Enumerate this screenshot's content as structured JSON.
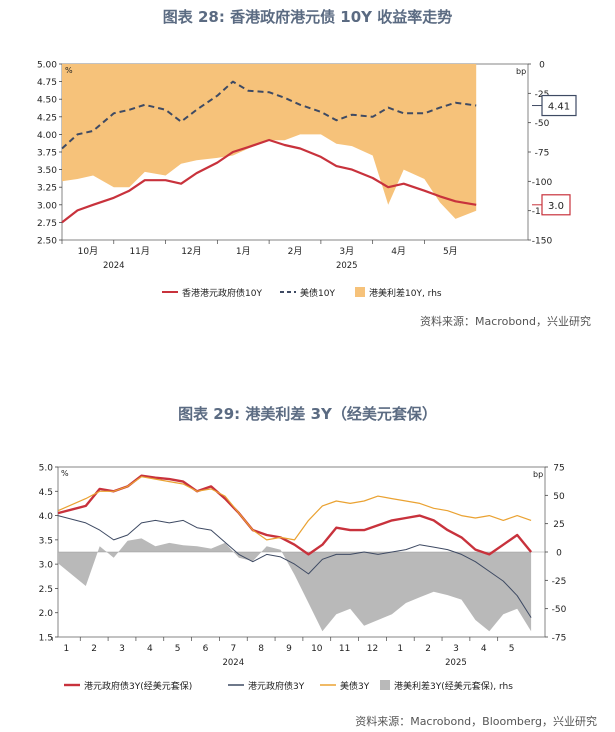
{
  "chart_data": [
    {
      "type": "line",
      "title": "图表 28: 香港政府港元债 10Y 收益率走势",
      "source": "资料来源：Macrobond，兴业研究",
      "left_unit": "%",
      "right_unit": "bp",
      "ylim": [
        2.5,
        5.0
      ],
      "yticks": [
        "5.00",
        "4.75",
        "4.50",
        "4.25",
        "4.00",
        "3.75",
        "3.50",
        "3.25",
        "3.00",
        "2.75",
        "2.50"
      ],
      "y2lim": [
        -150,
        0
      ],
      "y2ticks": [
        "0",
        "-25",
        "-50",
        "-75",
        "-100",
        "-125",
        "-150"
      ],
      "xlim": [
        0,
        9
      ],
      "month_labels": [
        "10月",
        "11月",
        "12月",
        "1月",
        "2月",
        "3月",
        "4月",
        "5月"
      ],
      "month_positions": [
        0.5,
        1.5,
        2.5,
        3.5,
        4.5,
        5.5,
        6.5,
        7.5
      ],
      "year_labels": [
        {
          "text": "2024",
          "pos": 1.0
        },
        {
          "text": "2025",
          "pos": 5.5
        }
      ],
      "legend": [
        "香港港元政府债10Y",
        "美债10Y",
        "港美利差10Y, rhs"
      ],
      "end_labels": {
        "us": "4.41",
        "hk": "3.0"
      },
      "series": [
        {
          "name": "香港港元政府债10Y",
          "axis": "left",
          "role": "hk",
          "x": [
            0,
            0.3,
            0.6,
            1.0,
            1.3,
            1.6,
            2.0,
            2.3,
            2.6,
            3.0,
            3.3,
            3.6,
            4.0,
            4.3,
            4.6,
            5.0,
            5.3,
            5.6,
            6.0,
            6.3,
            6.6,
            7.0,
            7.3,
            7.6,
            8.0
          ],
          "values": [
            2.75,
            2.92,
            3.0,
            3.1,
            3.2,
            3.35,
            3.35,
            3.3,
            3.45,
            3.6,
            3.75,
            3.82,
            3.92,
            3.85,
            3.8,
            3.68,
            3.55,
            3.5,
            3.38,
            3.25,
            3.3,
            3.2,
            3.12,
            3.05,
            3.0
          ]
        },
        {
          "name": "美债10Y",
          "axis": "left",
          "role": "us",
          "x": [
            0,
            0.3,
            0.6,
            1.0,
            1.3,
            1.6,
            2.0,
            2.3,
            2.6,
            3.0,
            3.3,
            3.6,
            4.0,
            4.3,
            4.6,
            5.0,
            5.3,
            5.6,
            6.0,
            6.3,
            6.6,
            7.0,
            7.3,
            7.6,
            8.0
          ],
          "values": [
            3.8,
            4.0,
            4.05,
            4.3,
            4.35,
            4.42,
            4.35,
            4.18,
            4.35,
            4.55,
            4.75,
            4.62,
            4.6,
            4.52,
            4.42,
            4.32,
            4.2,
            4.28,
            4.25,
            4.38,
            4.3,
            4.3,
            4.38,
            4.45,
            4.41
          ]
        },
        {
          "name": "港美利差10Y, rhs",
          "axis": "right",
          "role": "spread",
          "x": [
            0,
            0.3,
            0.6,
            1.0,
            1.3,
            1.6,
            2.0,
            2.3,
            2.6,
            3.0,
            3.3,
            3.6,
            4.0,
            4.3,
            4.6,
            5.0,
            5.3,
            5.6,
            6.0,
            6.3,
            6.6,
            7.0,
            7.3,
            7.6,
            8.0
          ],
          "values": [
            -100,
            -98,
            -95,
            -105,
            -105,
            -92,
            -95,
            -85,
            -82,
            -80,
            -78,
            -72,
            -65,
            -65,
            -60,
            -60,
            -68,
            -70,
            -78,
            -120,
            -90,
            -98,
            -118,
            -132,
            -125
          ]
        }
      ]
    },
    {
      "type": "line",
      "title": "图表 29: 港美利差 3Y（经美元套保）",
      "source": "资料来源：Macrobond，Bloomberg，兴业研究",
      "left_unit": "%",
      "right_unit": "bp",
      "ylim": [
        1.5,
        5.0
      ],
      "yticks": [
        "5.0",
        "4.5",
        "4.0",
        "3.5",
        "3.0",
        "2.5",
        "2.0",
        "1.5"
      ],
      "y2lim": [
        -75,
        75
      ],
      "y2ticks": [
        "75",
        "50",
        "25",
        "0",
        "-25",
        "-50",
        "-75"
      ],
      "xlim": [
        0,
        17.5
      ],
      "month_labels": [
        "1",
        "2",
        "3",
        "4",
        "5",
        "6",
        "7",
        "8",
        "9",
        "10",
        "11",
        "12",
        "1",
        "2",
        "3",
        "4",
        "5"
      ],
      "month_positions": [
        0.3,
        1.3,
        2.3,
        3.3,
        4.3,
        5.3,
        6.3,
        7.3,
        8.3,
        9.3,
        10.3,
        11.3,
        12.3,
        13.3,
        14.3,
        15.3,
        16.3
      ],
      "year_labels": [
        {
          "text": "2024",
          "pos": 6.3
        },
        {
          "text": "2025",
          "pos": 14.3
        }
      ],
      "legend": [
        "港元政府债3Y(经美元套保)",
        "港元政府债3Y",
        "美债3Y",
        "港美利差3Y(经美元套保), rhs"
      ],
      "series": [
        {
          "name": "港元政府债3Y(经美元套保)",
          "axis": "left",
          "role": "hk3y_hedged",
          "x": [
            0,
            1,
            1.5,
            2,
            2.5,
            3,
            3.5,
            4,
            4.5,
            5,
            5.5,
            6,
            6.5,
            7,
            7.5,
            8,
            8.5,
            9,
            9.5,
            10,
            10.5,
            11,
            11.5,
            12,
            12.5,
            13,
            13.5,
            14,
            14.5,
            15,
            15.5,
            16,
            16.5,
            17
          ],
          "values": [
            4.05,
            4.2,
            4.55,
            4.5,
            4.6,
            4.82,
            4.78,
            4.75,
            4.7,
            4.5,
            4.6,
            4.35,
            4.05,
            3.7,
            3.6,
            3.55,
            3.4,
            3.2,
            3.4,
            3.75,
            3.7,
            3.7,
            3.8,
            3.9,
            3.95,
            4.0,
            3.9,
            3.7,
            3.55,
            3.3,
            3.2,
            3.4,
            3.6,
            3.25
          ]
        },
        {
          "name": "港元政府债3Y",
          "axis": "left",
          "role": "hk3y",
          "x": [
            0,
            1,
            1.5,
            2,
            2.5,
            3,
            3.5,
            4,
            4.5,
            5,
            5.5,
            6,
            6.5,
            7,
            7.5,
            8,
            8.5,
            9,
            9.5,
            10,
            10.5,
            11,
            11.5,
            12,
            12.5,
            13,
            13.5,
            14,
            14.5,
            15,
            15.5,
            16,
            16.5,
            17
          ],
          "values": [
            4.0,
            3.85,
            3.7,
            3.5,
            3.6,
            3.85,
            3.9,
            3.85,
            3.9,
            3.75,
            3.7,
            3.45,
            3.2,
            3.05,
            3.2,
            3.15,
            3.0,
            2.8,
            3.1,
            3.2,
            3.2,
            3.25,
            3.2,
            3.25,
            3.3,
            3.4,
            3.35,
            3.3,
            3.2,
            3.05,
            2.85,
            2.65,
            2.35,
            1.9
          ]
        },
        {
          "name": "美债3Y",
          "axis": "left",
          "role": "us3y",
          "x": [
            0,
            1,
            1.5,
            2,
            2.5,
            3,
            3.5,
            4,
            4.5,
            5,
            5.5,
            6,
            6.5,
            7,
            7.5,
            8,
            8.5,
            9,
            9.5,
            10,
            10.5,
            11,
            11.5,
            12,
            12.5,
            13,
            13.5,
            14,
            14.5,
            15,
            15.5,
            16,
            16.5,
            17
          ],
          "values": [
            4.1,
            4.35,
            4.5,
            4.5,
            4.6,
            4.8,
            4.75,
            4.7,
            4.65,
            4.5,
            4.55,
            4.4,
            4.05,
            3.7,
            3.5,
            3.55,
            3.5,
            3.9,
            4.2,
            4.3,
            4.25,
            4.3,
            4.4,
            4.35,
            4.3,
            4.25,
            4.15,
            4.1,
            4.0,
            3.95,
            4.0,
            3.9,
            4.0,
            3.9
          ]
        },
        {
          "name": "港美利差3Y(经美元套保), rhs",
          "axis": "right",
          "role": "spread3y",
          "x": [
            0,
            1,
            1.5,
            2,
            2.5,
            3,
            3.5,
            4,
            4.5,
            5,
            5.5,
            6,
            6.5,
            7,
            7.5,
            8,
            8.5,
            9,
            9.5,
            10,
            10.5,
            11,
            11.5,
            12,
            12.5,
            13,
            13.5,
            14,
            14.5,
            15,
            15.5,
            16,
            16.5,
            17
          ],
          "values": [
            -10,
            -30,
            5,
            -5,
            10,
            12,
            5,
            8,
            6,
            5,
            3,
            8,
            -5,
            -8,
            5,
            2,
            -20,
            -45,
            -70,
            -55,
            -50,
            -65,
            -60,
            -55,
            -45,
            -40,
            -35,
            -38,
            -42,
            -60,
            -70,
            -55,
            -50,
            -70
          ]
        }
      ]
    }
  ]
}
